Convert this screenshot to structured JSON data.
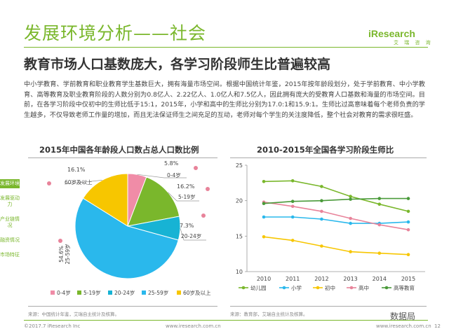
{
  "header": {
    "title": "发展环境分析——社会",
    "logo_brand": "iResearch",
    "logo_sub": "艾 瑞 咨 询",
    "subtitle": "教育市场人口基数庞大，各学习阶段师生比普遍较高"
  },
  "body_text": "中小学教育、学前教育和职业教育学生基数巨大，拥有海量市场空间。根据中国统计年鉴，2015年按年龄段划分，处于学前教育、中小学教育、高等教育及职业教育阶段的人数分别为0.8亿人、2.22亿人、1.0亿人和7.5亿人，因此拥有庞大的受教育人口基数和海量的市场空间。目前，在各学习阶段中仅初中的生师比低于15:1，2015年，小学和高中的生师比分别为17.0:1和15.9:1。生师比过高意味着每个老师负责的学生越多，不仅导致老师工作量的增加，而且无法保证师生之间充足的互动，老师对每个学生的关注度降低，整个社会对教育的需求很旺盛。",
  "sidebar": {
    "items": [
      {
        "label": "发展环境",
        "active": true
      },
      {
        "label": "发展驱动力",
        "active": false
      },
      {
        "label": "产业链情况",
        "active": false
      },
      {
        "label": "融资情况",
        "active": false
      },
      {
        "label": "市场特征",
        "active": false
      }
    ]
  },
  "pie": {
    "source": "来源：中国统计年鉴，艾瑞自主统计及核算。"
  },
  "line": {
    "source": "来源：教育部，艾瑞自主统计及核算。"
  },
  "footer": {
    "left": "©2017.7 iResearch Inc",
    "center": "www.iresearch.com.cn",
    "right": "www.iresearch.com.cn",
    "page": "12",
    "watermark": "数据局"
  },
  "colors": {
    "brand": "#7ab72c",
    "pink": "#e8839a"
  },
  "chart_data": [
    {
      "type": "pie",
      "title": "2015年中国各年龄段人口数占总人口数比例",
      "slices": [
        {
          "label": "0-4岁",
          "value": 5.8,
          "color": "#f08ca7"
        },
        {
          "label": "5-19岁",
          "value": 16.2,
          "color": "#7ab72c"
        },
        {
          "label": "20-24岁",
          "value": 7.3,
          "color": "#17b3d4"
        },
        {
          "label": "25-59岁",
          "value": 54.6,
          "color": "#2ab8ec"
        },
        {
          "label": "60岁及以上",
          "value": 16.1,
          "color": "#f7c600"
        }
      ],
      "value_labels": [
        "5.8%",
        "16.2%",
        "7.3%",
        "54.6%",
        "16.1%"
      ],
      "legend": [
        "0-4岁",
        "5-19岁",
        "20-24岁",
        "25-59岁",
        "60岁及以上"
      ]
    },
    {
      "type": "line",
      "title": "2010-2015年全国各学习阶段生师比",
      "x": [
        "2010",
        "2011",
        "2012",
        "2013",
        "2014",
        "2015"
      ],
      "ylim": [
        10,
        25
      ],
      "yticks": [
        "10",
        "15",
        "20",
        "25"
      ],
      "series": [
        {
          "name": "幼儿园",
          "color": "#7ab72c",
          "values": [
            22.7,
            22.8,
            22.0,
            20.6,
            19.5,
            18.5
          ]
        },
        {
          "name": "小学",
          "color": "#2ab8ec",
          "values": [
            17.7,
            17.7,
            17.4,
            16.8,
            16.8,
            17.0
          ]
        },
        {
          "name": "初中",
          "color": "#f7c600",
          "values": [
            14.9,
            14.4,
            13.6,
            12.8,
            12.6,
            12.4
          ]
        },
        {
          "name": "高中",
          "color": "#e8839a",
          "values": [
            19.8,
            19.2,
            18.5,
            17.5,
            16.6,
            15.9
          ]
        },
        {
          "name": "高等教育",
          "color": "#4a9a3a",
          "values": [
            19.6,
            19.9,
            20.0,
            20.2,
            20.3,
            20.3
          ]
        }
      ]
    }
  ]
}
